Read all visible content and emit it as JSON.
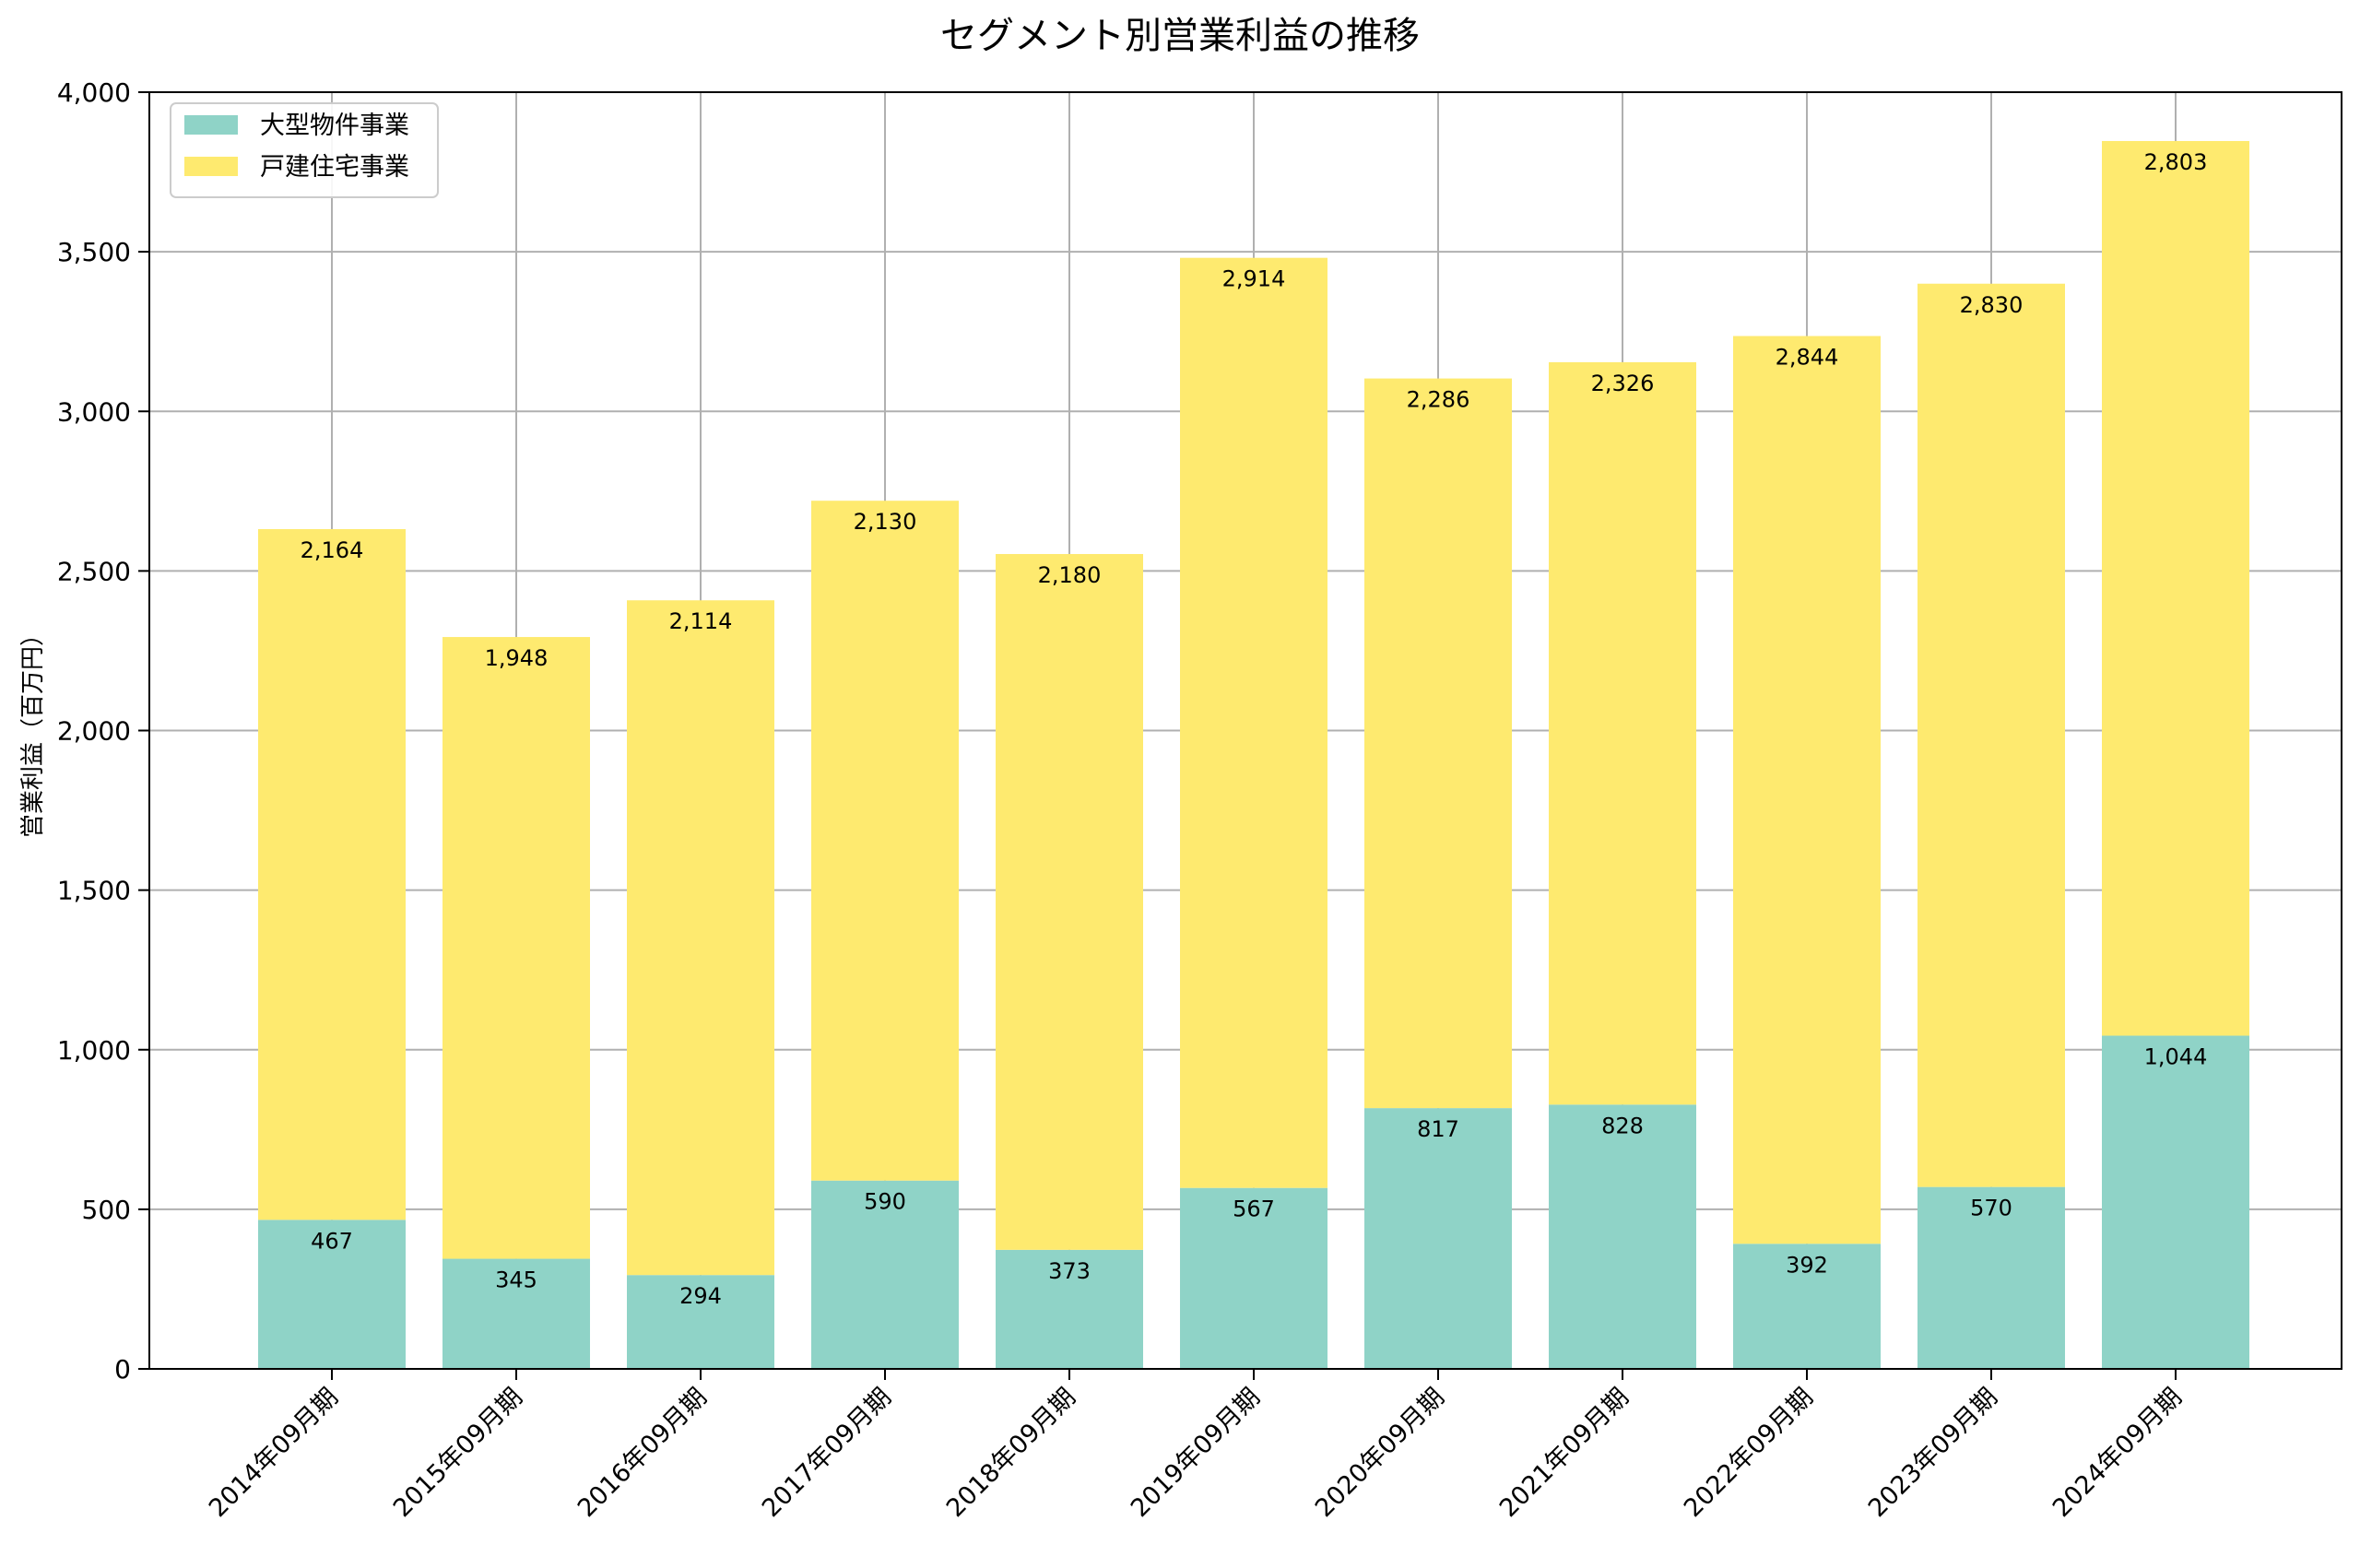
{
  "chart_data": {
    "type": "bar",
    "stacked": true,
    "title": "セグメント別営業利益の推移",
    "xlabel": "",
    "ylabel": "営業利益（百万円）",
    "ylim": [
      0,
      4000
    ],
    "yticks": [
      0,
      500,
      1000,
      1500,
      2000,
      2500,
      3000,
      3500,
      4000
    ],
    "ytick_labels": [
      "0",
      "500",
      "1,000",
      "1,500",
      "2,000",
      "2,500",
      "3,000",
      "3,500",
      "4,000"
    ],
    "grid": true,
    "legend_position": "top-left",
    "categories": [
      "2014年09月期",
      "2015年09月期",
      "2016年09月期",
      "2017年09月期",
      "2018年09月期",
      "2019年09月期",
      "2020年09月期",
      "2021年09月期",
      "2022年09月期",
      "2023年09月期",
      "2024年09月期"
    ],
    "series": [
      {
        "name": "大型物件事業",
        "color": "#8fd3c7",
        "values": [
          467,
          345,
          294,
          590,
          373,
          567,
          817,
          828,
          392,
          570,
          1044
        ],
        "labels": [
          "467",
          "345",
          "294",
          "590",
          "373",
          "567",
          "817",
          "828",
          "392",
          "570",
          "1,044"
        ]
      },
      {
        "name": "戸建住宅事業",
        "color": "#feea6f",
        "values": [
          2164,
          1948,
          2114,
          2130,
          2180,
          2914,
          2286,
          2326,
          2844,
          2830,
          2803
        ],
        "labels": [
          "2,164",
          "1,948",
          "2,114",
          "2,130",
          "2,180",
          "2,914",
          "2,286",
          "2,326",
          "2,844",
          "2,830",
          "2,803"
        ]
      }
    ]
  }
}
